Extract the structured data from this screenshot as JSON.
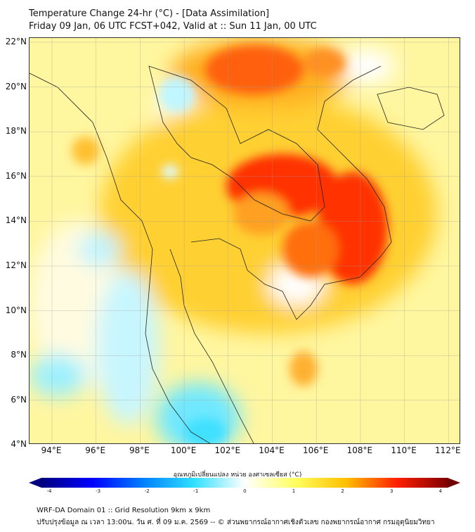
{
  "title": {
    "line1": "Temperature Change 24-hr (°C) - [Data Assimilation]",
    "line2": "Friday 09 Jan, 06 UTC FCST+042, Valid at :: Sun 11 Jan, 00 UTC"
  },
  "map": {
    "lon_labels": [
      "94°E",
      "96°E",
      "98°E",
      "100°E",
      "102°E",
      "104°E",
      "106°E",
      "108°E",
      "110°E",
      "112°E"
    ],
    "lat_labels": [
      "22°N",
      "20°N",
      "18°N",
      "16°N",
      "14°N",
      "12°N",
      "10°N",
      "8°N",
      "6°N",
      "4°N"
    ]
  },
  "colorbar": {
    "title": "อุณหภูมิเปลี่ยนแปลง หน่วย องศาเซลเซียส (°C)",
    "ticks": [
      "-4",
      "-3",
      "-2",
      "-1",
      "0",
      "1",
      "2",
      "3",
      "4"
    ],
    "colors": [
      "#00007f",
      "#0000ff",
      "#0080ff",
      "#30e0ff",
      "#ffffff",
      "#ffff60",
      "#ffc000",
      "#ff2000",
      "#7f0000"
    ]
  },
  "footer": {
    "line1": "WRF-DA Domain 01 :: Grid Resolution 9km x 9km",
    "line2": "ปรับปรุงข้อมูล ณ เวลา 13:00น. วัน ศ. ที่ 09 ม.ค. 2569 -- © ส่วนพยากรณ์อากาศเชิงตัวเลข กองพยากรณ์อากาศ กรมอุตุนิยมวิทยา"
  }
}
